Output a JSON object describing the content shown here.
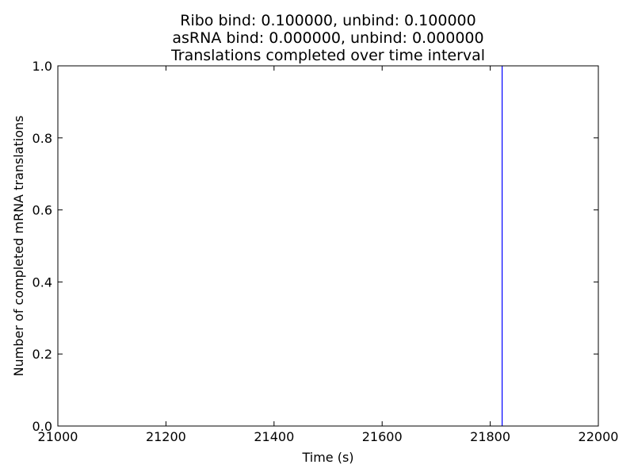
{
  "chart_data": {
    "type": "line",
    "title_lines": [
      "Ribo bind: 0.100000, unbind: 0.100000",
      "asRNA bind: 0.000000, unbind: 0.000000",
      "Translations completed over time interval"
    ],
    "xlabel": "Time (s)",
    "ylabel": "Number of completed mRNA translations",
    "xlim": [
      21000,
      22000
    ],
    "ylim": [
      0.0,
      1.0
    ],
    "xticks": [
      "21000",
      "21200",
      "21400",
      "21600",
      "21800",
      "22000"
    ],
    "yticks": [
      "0.0",
      "0.2",
      "0.4",
      "0.6",
      "0.8",
      "1.0"
    ],
    "grid": false,
    "series": [
      {
        "color": "#0000ff",
        "x": [
          21822,
          21822
        ],
        "y": [
          0.0,
          1.0
        ]
      }
    ]
  }
}
